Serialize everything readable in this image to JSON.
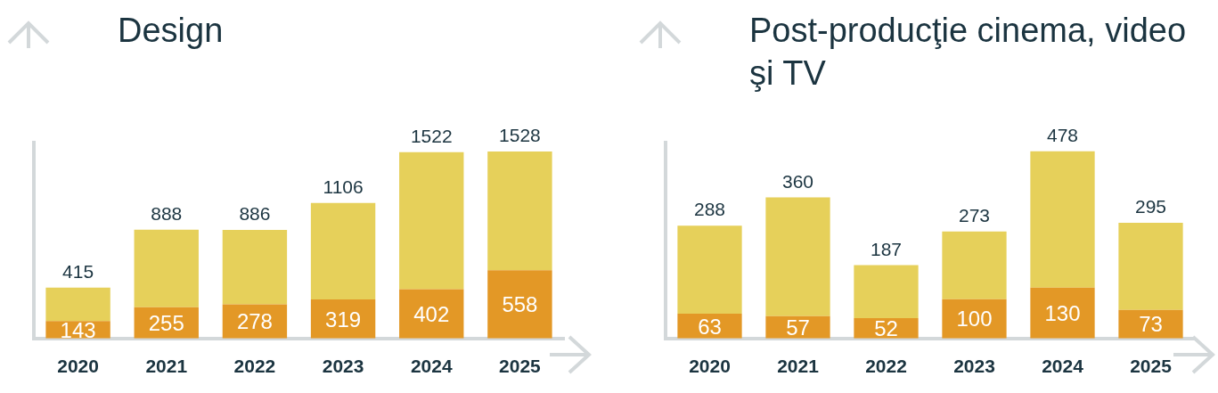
{
  "chart_data": [
    {
      "type": "bar",
      "title": "Design",
      "categories": [
        "2020",
        "2021",
        "2022",
        "2023",
        "2024",
        "2025"
      ],
      "stacked": true,
      "tick_labels": "x",
      "series": [
        {
          "color": "#e39826",
          "values": [
            143,
            255,
            278,
            319,
            402,
            558
          ],
          "value_labels": [
            "143",
            "255",
            "278",
            "319",
            "402",
            "558"
          ]
        },
        {
          "color": "#e6d05a",
          "values": [
            272,
            633,
            608,
            787,
            1120,
            970
          ]
        }
      ],
      "totals": [
        "415",
        "888",
        "886",
        "1106",
        "1522",
        "1528"
      ]
    },
    {
      "type": "bar",
      "title": "Post-producţie cinema, video şi TV",
      "categories": [
        "2020",
        "2021",
        "2022",
        "2023",
        "2024",
        "2025"
      ],
      "stacked": true,
      "tick_labels": "x",
      "series": [
        {
          "color": "#e39826",
          "values": [
            63,
            57,
            52,
            100,
            130,
            73
          ],
          "value_labels": [
            "63",
            "57",
            "52",
            "100",
            "130",
            "73"
          ]
        },
        {
          "color": "#e6d05a",
          "values": [
            225,
            303,
            135,
            173,
            348,
            222
          ]
        }
      ],
      "totals": [
        "288",
        "360",
        "187",
        "273",
        "478",
        "295"
      ]
    }
  ]
}
